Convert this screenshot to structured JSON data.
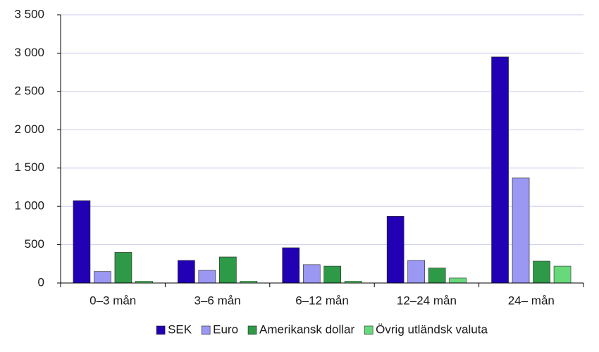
{
  "chart_data": {
    "type": "bar",
    "categories": [
      "0–3 mån",
      "3–6 mån",
      "6–12 mån",
      "12–24 mån",
      "24– mån"
    ],
    "series": [
      {
        "name": "SEK",
        "color": "#2200b4",
        "values": [
          1075,
          295,
          460,
          870,
          2950
        ]
      },
      {
        "name": "Euro",
        "color": "#9a98f2",
        "values": [
          150,
          165,
          240,
          295,
          1370
        ]
      },
      {
        "name": "Amerikansk dollar",
        "color": "#2e9a47",
        "values": [
          400,
          340,
          220,
          195,
          285
        ]
      },
      {
        "name": "Övrig utländsk valuta",
        "color": "#67d97b",
        "values": [
          25,
          25,
          25,
          65,
          220
        ]
      }
    ],
    "ylim": [
      0,
      3500
    ],
    "yticks": [
      0,
      500,
      {
        "value": 1000,
        "label": "1 000"
      },
      {
        "value": 1500,
        "label": "1 500"
      },
      {
        "value": 2000,
        "label": "2 000"
      },
      {
        "value": 2500,
        "label": "2 500"
      },
      {
        "value": 3000,
        "label": "3 000"
      },
      {
        "value": 3500,
        "label": "3 500"
      }
    ],
    "grid": true,
    "legend": "bottom"
  }
}
